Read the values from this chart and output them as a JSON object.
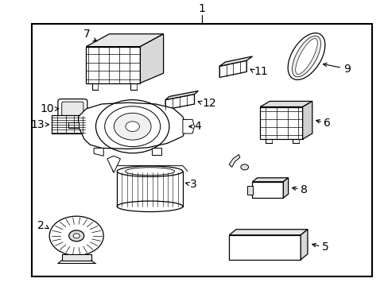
{
  "background_color": "#ffffff",
  "line_color": "#000000",
  "text_color": "#000000",
  "fig_width": 4.89,
  "fig_height": 3.6,
  "dpi": 100,
  "border": [
    0.08,
    0.03,
    0.88,
    0.9
  ]
}
